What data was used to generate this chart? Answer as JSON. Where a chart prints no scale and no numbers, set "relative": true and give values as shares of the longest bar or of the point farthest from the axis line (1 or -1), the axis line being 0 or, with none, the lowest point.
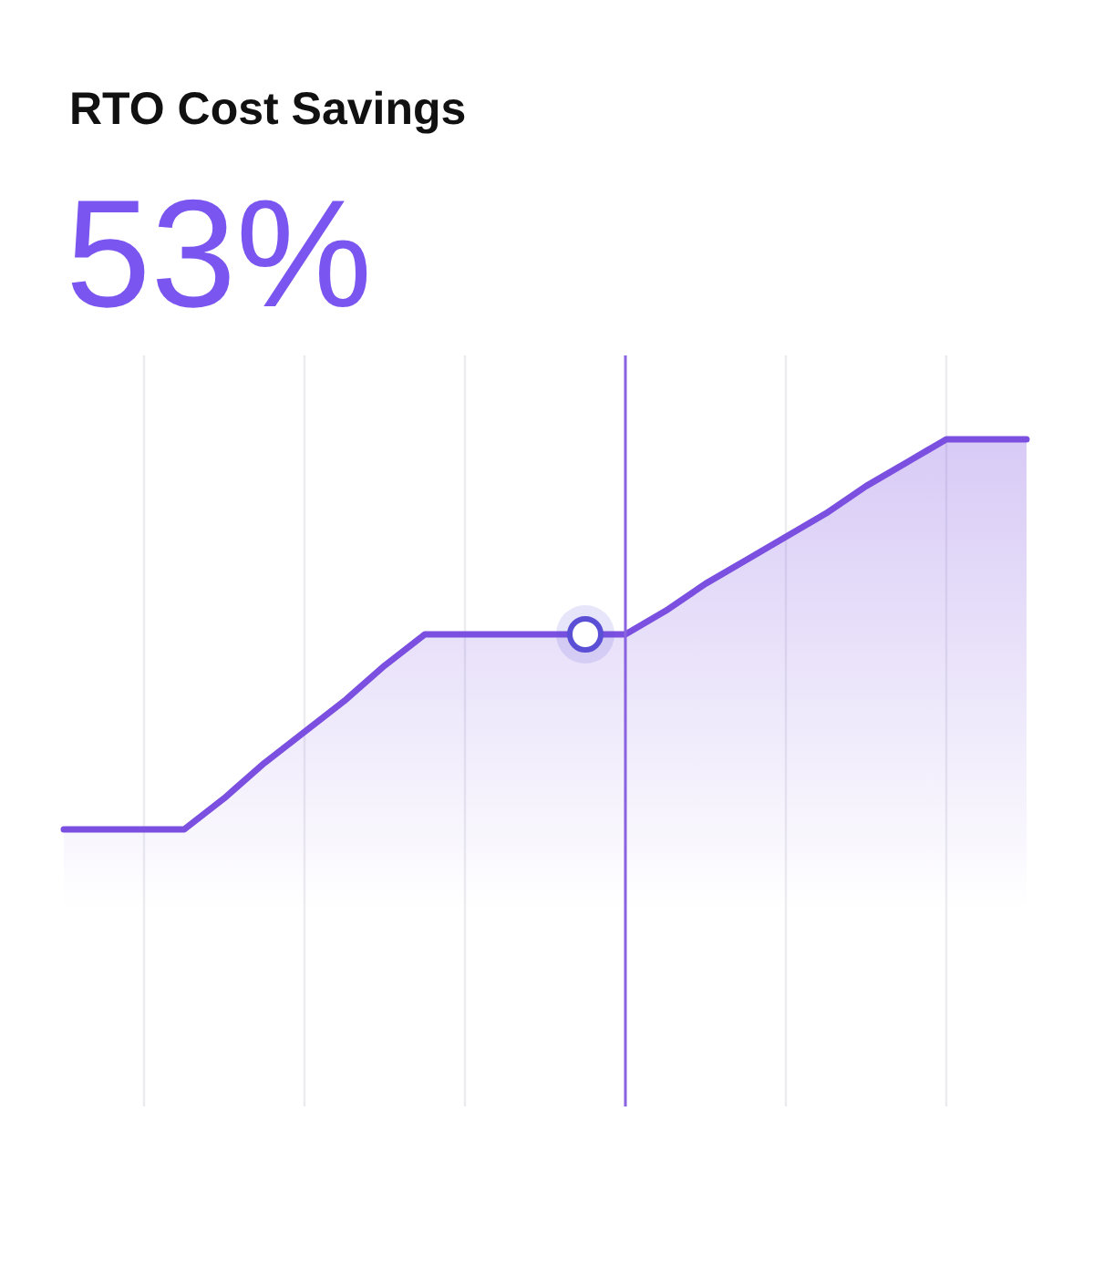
{
  "chart_data": {
    "type": "area",
    "title": "RTO Cost Savings",
    "subtitle": "53%",
    "relative": true,
    "grid": true,
    "categories": [
      null,
      null,
      null,
      null,
      null,
      null,
      null,
      null,
      null,
      null,
      null,
      null,
      null,
      null,
      null,
      null,
      null,
      null,
      null,
      null,
      null,
      null,
      null,
      null,
      null
    ],
    "series": [
      {
        "color": "#7b4fe0",
        "values": [
          0,
          0,
          0,
          0,
          0.08,
          0.17,
          0.25,
          0.33,
          0.42,
          0.5,
          0.5,
          0.5,
          0.5,
          0.5,
          0.5,
          0.56,
          0.63,
          0.69,
          0.75,
          0.81,
          0.88,
          0.94,
          1,
          1,
          1
        ]
      }
    ]
  }
}
